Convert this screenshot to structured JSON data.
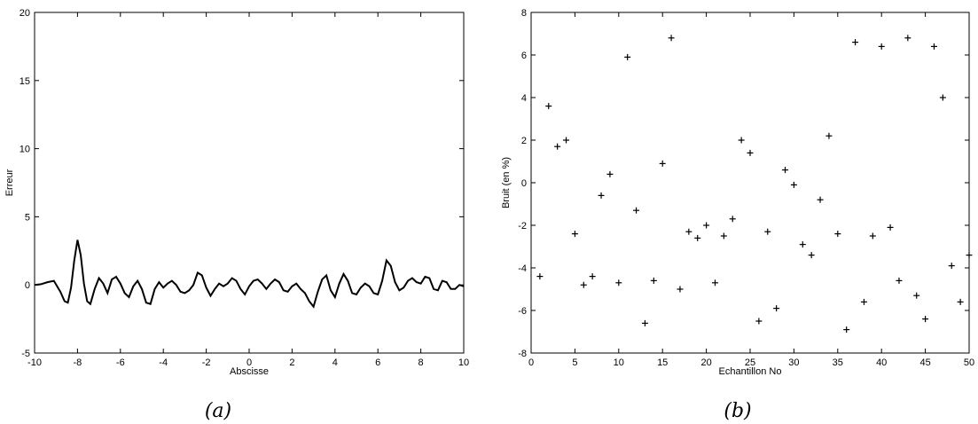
{
  "chart_data": [
    {
      "type": "line",
      "xlabel": "Abscisse",
      "ylabel": "Erreur",
      "xlim": [
        -10,
        10
      ],
      "ylim": [
        -5,
        20
      ],
      "xticks": [
        -10,
        -8,
        -6,
        -4,
        -2,
        0,
        2,
        4,
        6,
        8,
        10
      ],
      "yticks": [
        -5,
        0,
        5,
        10,
        15,
        20
      ],
      "caption": "(a)",
      "series": [
        {
          "x": [
            -10,
            -9.7,
            -9.4,
            -9.1,
            -8.8,
            -8.6,
            -8.45,
            -8.3,
            -8.15,
            -8.0,
            -7.85,
            -7.7,
            -7.55,
            -7.4,
            -7.2,
            -7.0,
            -6.8,
            -6.6,
            -6.4,
            -6.2,
            -6.0,
            -5.8,
            -5.6,
            -5.4,
            -5.2,
            -5.0,
            -4.8,
            -4.6,
            -4.4,
            -4.2,
            -4.0,
            -3.8,
            -3.6,
            -3.4,
            -3.2,
            -3.0,
            -2.8,
            -2.6,
            -2.4,
            -2.2,
            -2.0,
            -1.8,
            -1.6,
            -1.4,
            -1.2,
            -1.0,
            -0.8,
            -0.6,
            -0.4,
            -0.2,
            0.0,
            0.2,
            0.4,
            0.6,
            0.8,
            1.0,
            1.2,
            1.4,
            1.6,
            1.8,
            2.0,
            2.2,
            2.4,
            2.6,
            2.8,
            3.0,
            3.2,
            3.4,
            3.6,
            3.8,
            4.0,
            4.2,
            4.4,
            4.6,
            4.8,
            5.0,
            5.2,
            5.4,
            5.6,
            5.8,
            6.0,
            6.2,
            6.4,
            6.6,
            6.8,
            7.0,
            7.2,
            7.4,
            7.6,
            7.8,
            8.0,
            8.2,
            8.4,
            8.6,
            8.8,
            9.0,
            9.2,
            9.4,
            9.6,
            9.8,
            10.0
          ],
          "y": [
            0,
            0.05,
            0.2,
            0.3,
            -0.5,
            -1.2,
            -1.3,
            -0.2,
            1.8,
            3.3,
            2.2,
            0.1,
            -1.2,
            -1.4,
            -0.3,
            0.5,
            0.1,
            -0.6,
            0.4,
            0.6,
            0.1,
            -0.6,
            -0.9,
            -0.1,
            0.3,
            -0.3,
            -1.3,
            -1.4,
            -0.3,
            0.2,
            -0.2,
            0.1,
            0.3,
            0.0,
            -0.5,
            -0.6,
            -0.4,
            0.0,
            0.9,
            0.7,
            -0.2,
            -0.8,
            -0.3,
            0.1,
            -0.1,
            0.1,
            0.5,
            0.3,
            -0.3,
            -0.7,
            -0.1,
            0.3,
            0.4,
            0.1,
            -0.3,
            0.1,
            0.4,
            0.2,
            -0.4,
            -0.5,
            -0.1,
            0.1,
            -0.3,
            -0.6,
            -1.2,
            -1.6,
            -0.5,
            0.4,
            0.7,
            -0.4,
            -0.9,
            0.1,
            0.8,
            0.3,
            -0.6,
            -0.7,
            -0.2,
            0.1,
            -0.1,
            -0.6,
            -0.7,
            0.3,
            1.8,
            1.4,
            0.2,
            -0.4,
            -0.2,
            0.3,
            0.5,
            0.2,
            0.1,
            0.6,
            0.5,
            -0.3,
            -0.4,
            0.3,
            0.2,
            -0.3,
            -0.3,
            0.0,
            -0.1
          ]
        }
      ]
    },
    {
      "type": "scatter",
      "xlabel": "Echantillon No",
      "ylabel": "Bruit (en %)",
      "xlim": [
        0,
        50
      ],
      "ylim": [
        -8,
        8
      ],
      "xticks": [
        0,
        5,
        10,
        15,
        20,
        25,
        30,
        35,
        40,
        45,
        50
      ],
      "yticks": [
        -8,
        -6,
        -4,
        -2,
        0,
        2,
        4,
        6,
        8
      ],
      "marker": "+",
      "caption": "(b)",
      "series": [
        {
          "x": [
            1,
            2,
            3,
            4,
            5,
            6,
            7,
            8,
            9,
            10,
            11,
            12,
            13,
            14,
            15,
            16,
            17,
            18,
            19,
            20,
            21,
            22,
            23,
            24,
            25,
            26,
            27,
            28,
            29,
            30,
            31,
            32,
            33,
            34,
            35,
            36,
            37,
            38,
            39,
            40,
            41,
            42,
            43,
            44,
            45,
            46,
            47,
            48,
            49,
            50
          ],
          "y": [
            -4.4,
            3.6,
            1.7,
            2.0,
            -2.4,
            -4.8,
            -4.4,
            -0.6,
            0.4,
            -4.7,
            5.9,
            -1.3,
            -6.6,
            -4.6,
            0.9,
            6.8,
            -5.0,
            -2.3,
            -2.6,
            -2.0,
            -4.7,
            -2.5,
            -1.7,
            2.0,
            1.4,
            -6.5,
            -2.3,
            -5.9,
            0.6,
            -0.1,
            -2.9,
            -3.4,
            -0.8,
            2.2,
            -2.4,
            -6.9,
            6.6,
            -5.6,
            -2.5,
            6.4,
            -2.1,
            -4.6,
            6.8,
            -5.3,
            -6.4,
            6.4,
            4.0,
            -3.9,
            -5.6,
            -3.4
          ]
        }
      ]
    }
  ]
}
